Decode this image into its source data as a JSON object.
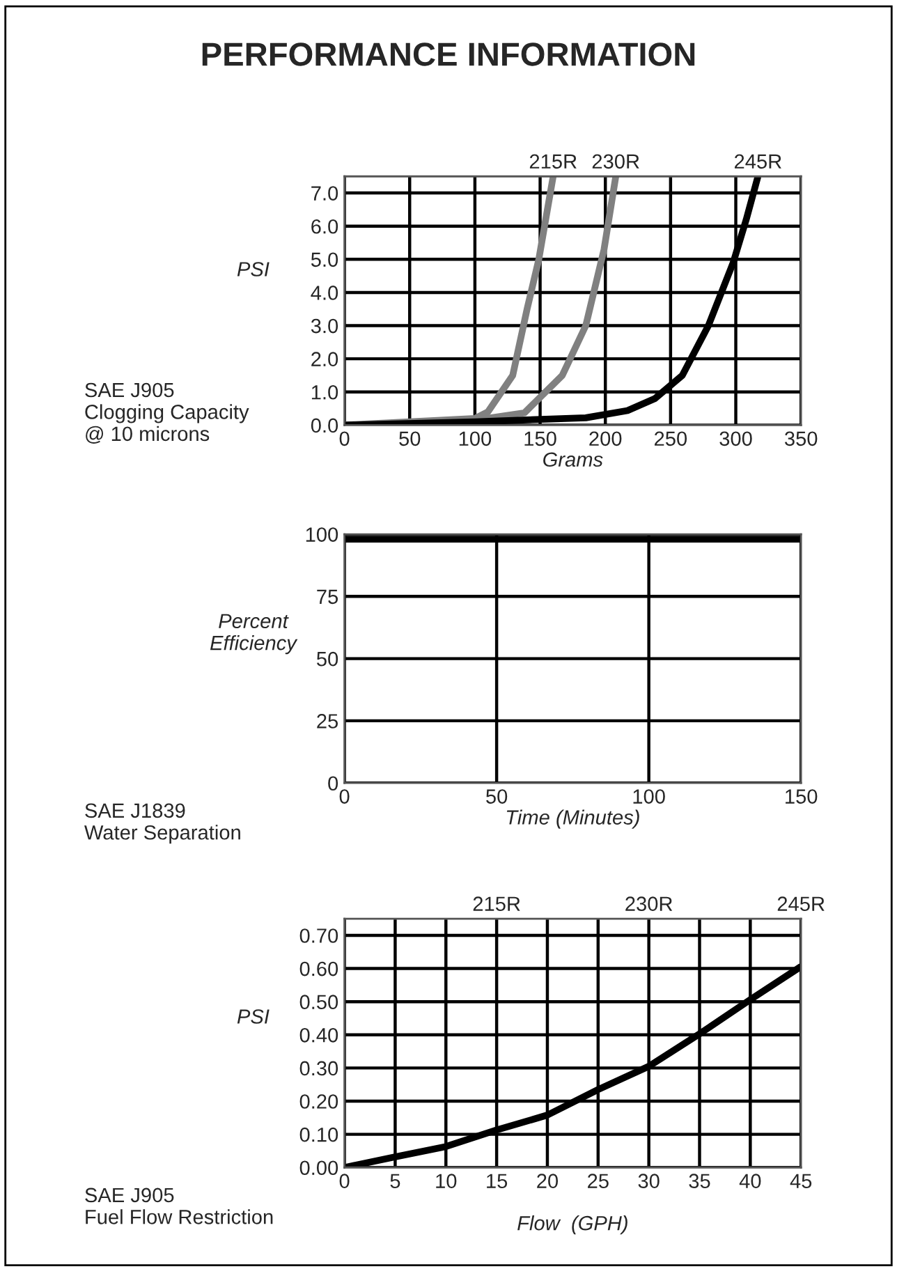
{
  "chart_data": [
    {
      "type": "line",
      "title": "PERFORMANCE INFORMATION",
      "xlabel": "Grams",
      "ylabel": "PSI",
      "annotations": [
        "SAE J905\nClogging Capacity\n@ 10 microns"
      ],
      "xlim": [
        0,
        350
      ],
      "xticks": [
        0,
        50,
        100,
        150,
        200,
        250,
        300,
        350
      ],
      "ylim": [
        0,
        7.5
      ],
      "yticks": [
        {
          "value": 0,
          "label": "0.0"
        },
        {
          "value": 1,
          "label": "1.0"
        },
        {
          "value": 2,
          "label": "2.0"
        },
        {
          "value": 3,
          "label": "3.0"
        },
        {
          "value": 4,
          "label": "4.0"
        },
        {
          "value": 5,
          "label": "5.0"
        },
        {
          "value": 6,
          "label": "6.0"
        },
        {
          "value": 7,
          "label": "7.0"
        }
      ],
      "grid": true,
      "line_style": "solid",
      "series": [
        {
          "name": "215R",
          "color": "#808080",
          "x": [
            0,
            50,
            100,
            110,
            129,
            140,
            149,
            160
          ],
          "values": [
            0,
            0.1,
            0.2,
            0.4,
            1.5,
            3.5,
            5,
            7.5
          ]
        },
        {
          "name": "230R",
          "color": "#808080",
          "x": [
            0,
            50,
            100,
            138,
            167,
            185,
            199,
            208
          ],
          "values": [
            0,
            0.05,
            0.15,
            0.37,
            1.5,
            3,
            5.3,
            7.5
          ]
        },
        {
          "name": "245R",
          "color": "#000000",
          "x": [
            0,
            100,
            185,
            217,
            238,
            259,
            279,
            298,
            308,
            317
          ],
          "values": [
            0,
            0.1,
            0.22,
            0.44,
            0.8,
            1.5,
            3,
            4.9,
            6.2,
            7.5
          ]
        }
      ]
    },
    {
      "type": "line",
      "xlabel": "Time (Minutes)",
      "ylabel": "Percent\nEfficiency",
      "annotations": [
        "SAE J1839\nWater Separation"
      ],
      "xlim": [
        0,
        150
      ],
      "xticks": [
        0,
        50,
        100,
        150
      ],
      "ylim": [
        0,
        100
      ],
      "yticks": [
        0,
        25,
        50,
        75,
        100
      ],
      "grid": true,
      "line_style": "solid",
      "series": [
        {
          "color": "#000000",
          "x": [
            0,
            150
          ],
          "values": [
            98,
            98
          ]
        }
      ]
    },
    {
      "type": "line",
      "xlabel": "Flow  (GPH)",
      "ylabel": "PSI",
      "annotations": [
        "SAE J905\nFuel Flow Restriction",
        "215R",
        "230R",
        "245R"
      ],
      "xlim": [
        0,
        45
      ],
      "xticks": [
        0,
        5,
        10,
        15,
        20,
        25,
        30,
        35,
        40,
        45
      ],
      "ylim": [
        0,
        0.75
      ],
      "yticks": [
        {
          "value": 0,
          "label": "0.00"
        },
        {
          "value": 0.1,
          "label": "0.10"
        },
        {
          "value": 0.2,
          "label": "0.20"
        },
        {
          "value": 0.3,
          "label": "0.30"
        },
        {
          "value": 0.4,
          "label": "0.40"
        },
        {
          "value": 0.5,
          "label": "0.50"
        },
        {
          "value": 0.6,
          "label": "0.60"
        },
        {
          "value": 0.7,
          "label": "0.70"
        }
      ],
      "grid": true,
      "line_style": "solid",
      "series": [
        {
          "color": "#000000",
          "x": [
            0,
            5,
            10,
            15,
            20,
            25,
            30,
            35,
            40,
            45
          ],
          "values": [
            0,
            0.032,
            0.063,
            0.113,
            0.158,
            0.235,
            0.305,
            0.403,
            0.506,
            0.606
          ]
        }
      ]
    }
  ]
}
